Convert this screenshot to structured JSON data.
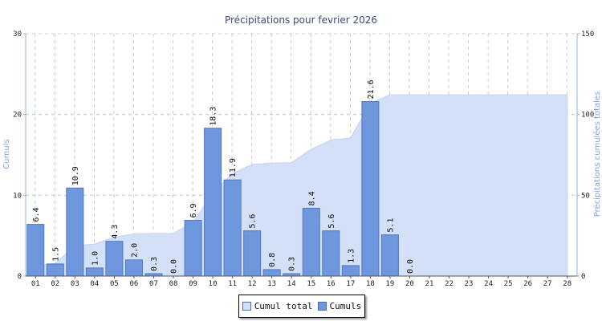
{
  "chart_data": {
    "type": "bar",
    "title": "Précipitations pour fevrier 2026",
    "ylabel_left": "Cumuls",
    "ylabel_right": "Précipitations cumulées totales",
    "ylim_left": [
      0,
      30
    ],
    "ylim_right": [
      0,
      150
    ],
    "yticks_left": [
      "0",
      "10",
      "20",
      "30"
    ],
    "yticks_right": [
      "0",
      "50",
      "100",
      "150"
    ],
    "grid": true,
    "legend_position": "bottom-center",
    "categories": [
      "01",
      "02",
      "03",
      "04",
      "05",
      "06",
      "07",
      "08",
      "09",
      "10",
      "11",
      "12",
      "13",
      "14",
      "15",
      "16",
      "17",
      "18",
      "19",
      "20",
      "21",
      "22",
      "23",
      "24",
      "25",
      "26",
      "27",
      "28"
    ],
    "series": [
      {
        "name": "Cumuls",
        "type": "bar",
        "axis": "left",
        "color": "#6f97de",
        "values": [
          6.4,
          1.5,
          10.9,
          1.0,
          4.3,
          2.0,
          0.3,
          0.0,
          6.9,
          18.3,
          11.9,
          5.6,
          0.8,
          0.3,
          8.4,
          5.6,
          1.3,
          21.6,
          5.1,
          0.0,
          null,
          null,
          null,
          null,
          null,
          null,
          null,
          null
        ],
        "labels": [
          "6.4",
          "1.5",
          "10.9",
          "1.0",
          "4.3",
          "2.0",
          "0.3",
          "0.0",
          "6.9",
          "18.3",
          "11.9",
          "5.6",
          "0.8",
          "0.3",
          "8.4",
          "5.6",
          "1.3",
          "21.6",
          "5.1",
          "0.0",
          "",
          "",
          "",
          "",
          "",
          "",
          "",
          ""
        ]
      },
      {
        "name": "Cumul total",
        "type": "area",
        "axis": "right",
        "color": "#d3e0f8",
        "values": [
          6.4,
          7.9,
          18.8,
          19.8,
          24.1,
          26.1,
          26.4,
          26.4,
          33.3,
          51.6,
          63.5,
          69.1,
          69.9,
          70.2,
          78.6,
          84.2,
          85.5,
          107.1,
          112.2,
          112.2,
          112.2,
          112.2,
          112.2,
          112.2,
          112.2,
          112.2,
          112.2,
          112.2
        ]
      }
    ]
  }
}
